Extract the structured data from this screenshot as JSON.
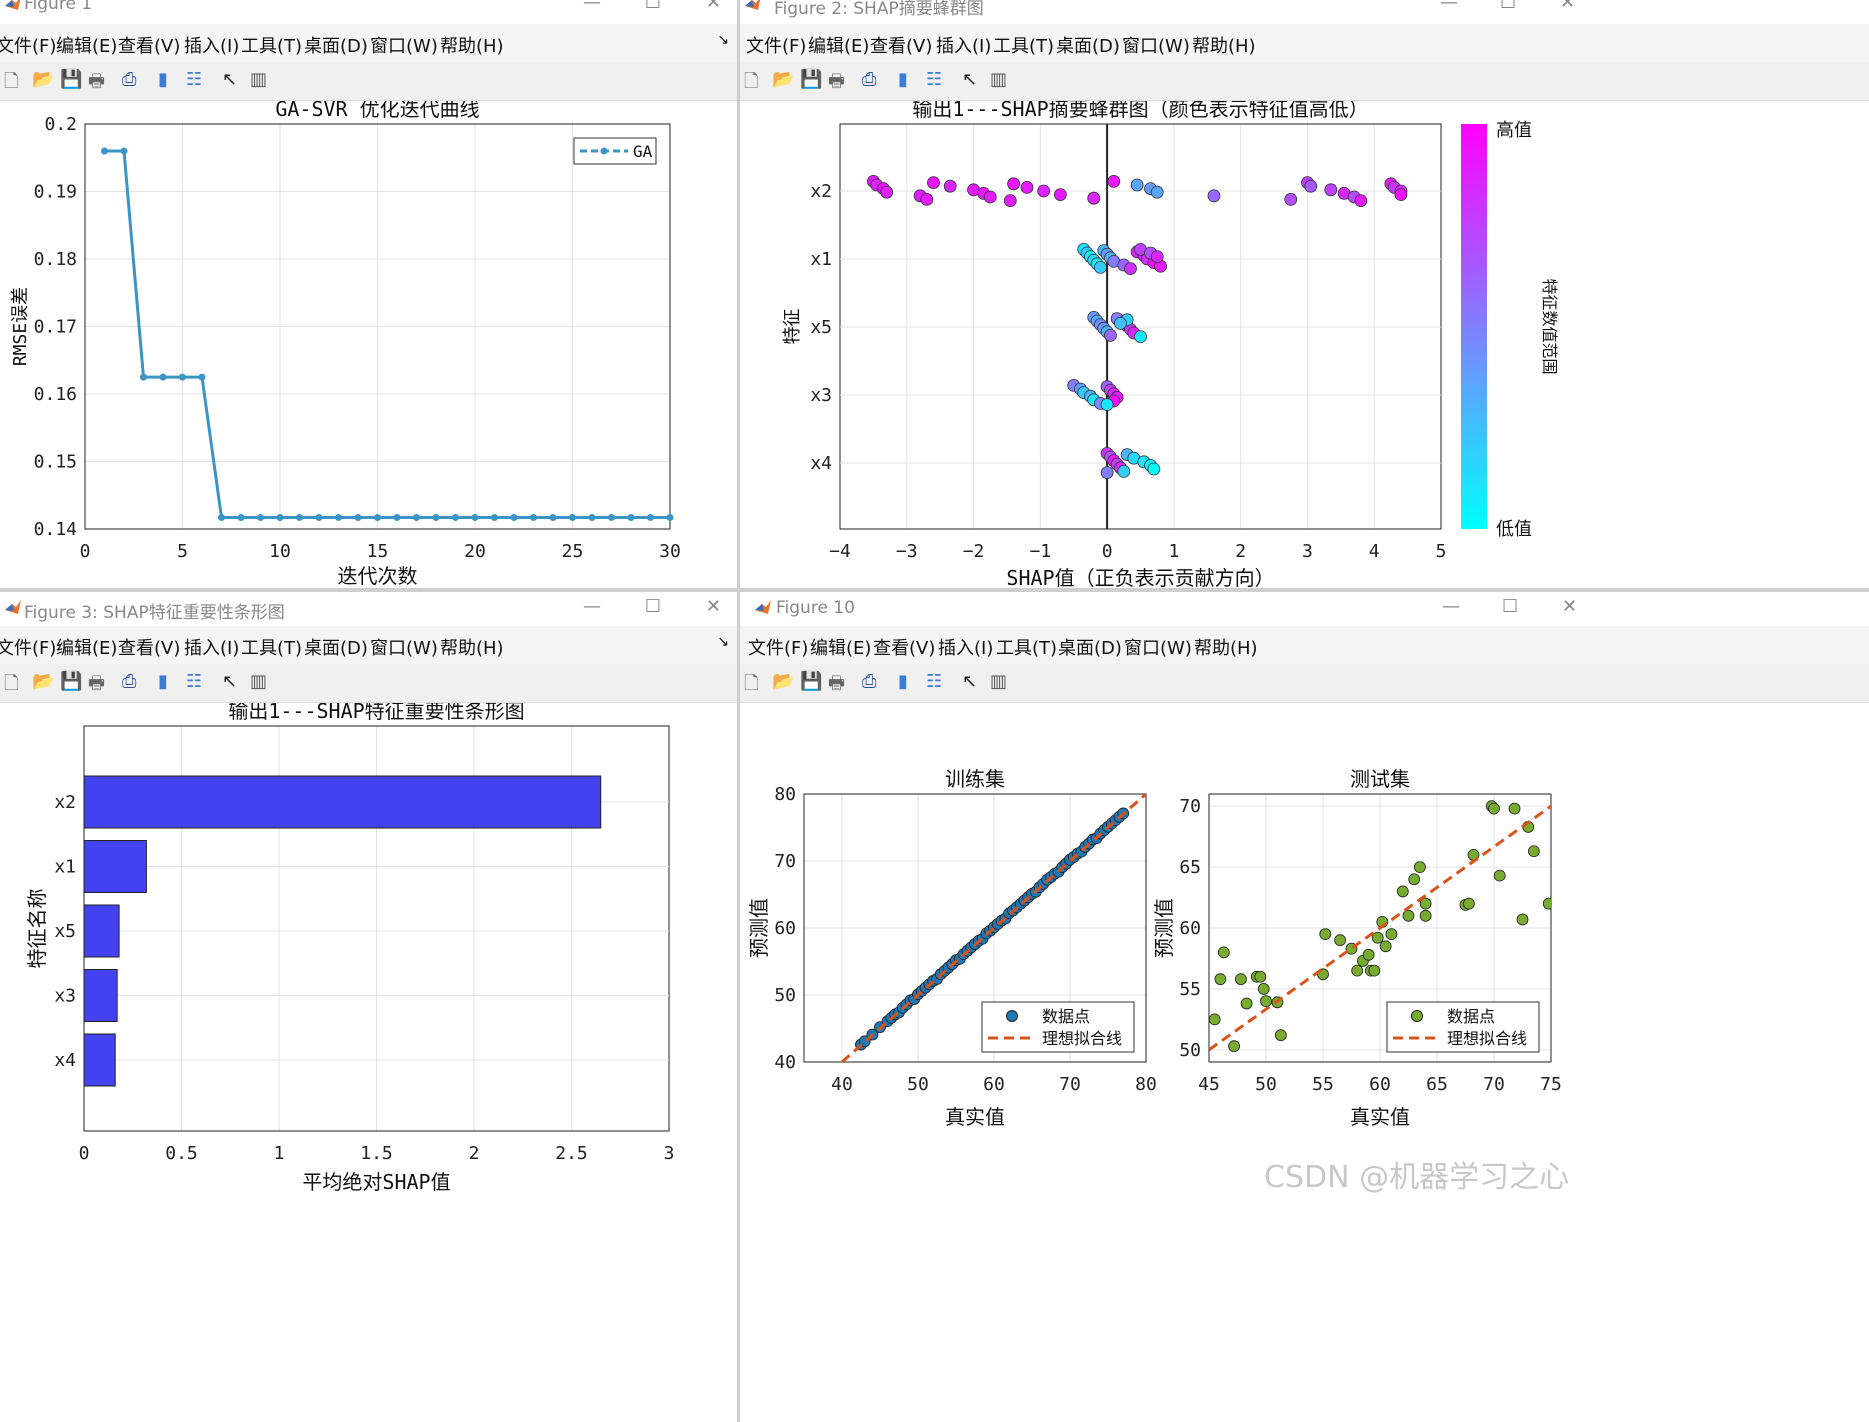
{
  "windows": [
    {
      "title": "Figure 1"
    },
    {
      "title": "Figure 2: SHAP摘要蜂群图"
    },
    {
      "title": "Figure 3: SHAP特征重要性条形图"
    },
    {
      "title": "Figure 10"
    }
  ],
  "menu": [
    "文件(F)",
    "编辑(E)",
    "查看(V)",
    "插入(I)",
    "工具(T)",
    "桌面(D)",
    "窗口(W)",
    "帮助(H)"
  ],
  "toolbar_icons": [
    "new-file-icon",
    "open-folder-icon",
    "save-icon",
    "print-icon",
    "print-preview-icon",
    "colorbar-icon",
    "legend-icon",
    "pointer-icon",
    "property-editor-icon"
  ],
  "watermark": "CSDN @机器学习之心",
  "chart_data": [
    {
      "type": "line",
      "title": "GA-SVR 优化迭代曲线",
      "xlabel": "迭代次数",
      "ylabel": "RMSE误差",
      "xlim": [
        0,
        30
      ],
      "ylim": [
        0.14,
        0.2
      ],
      "xticks": [
        0,
        5,
        10,
        15,
        20,
        25,
        30
      ],
      "yticks": [
        0.14,
        0.15,
        0.16,
        0.17,
        0.18,
        0.19,
        0.2
      ],
      "grid": true,
      "legend": "top-right",
      "color": "#3a95c6",
      "series": [
        {
          "name": "GA",
          "x": [
            1,
            2,
            3,
            4,
            5,
            6,
            7,
            8,
            9,
            10,
            11,
            12,
            13,
            14,
            15,
            16,
            17,
            18,
            19,
            20,
            21,
            22,
            23,
            24,
            25,
            26,
            27,
            28,
            29,
            30
          ],
          "y": [
            0.196,
            0.196,
            0.1625,
            0.1625,
            0.1625,
            0.1625,
            0.1417,
            0.1417,
            0.1417,
            0.1417,
            0.1417,
            0.1417,
            0.1417,
            0.1417,
            0.1417,
            0.1417,
            0.1417,
            0.1417,
            0.1417,
            0.1417,
            0.1417,
            0.1417,
            0.1417,
            0.1417,
            0.1417,
            0.1417,
            0.1417,
            0.1417,
            0.1417,
            0.1417
          ]
        }
      ]
    },
    {
      "type": "scatter",
      "title": "输出1---SHAP摘要蜂群图（颜色表示特征值高低）",
      "xlabel": "SHAP值（正负表示贡献方向）",
      "ylabel": "特征",
      "xlim": [
        -4,
        5
      ],
      "xticks": [
        -4,
        -3,
        -2,
        -1,
        0,
        1,
        2,
        3,
        4,
        5
      ],
      "categories": [
        "x2",
        "x1",
        "x5",
        "x3",
        "x4"
      ],
      "grid": true,
      "colorbar": {
        "high": "高值",
        "low": "低值",
        "label": "特征数值范围",
        "low_color": "#00ffff",
        "high_color": "#ff00ff"
      },
      "series": [
        {
          "feature": "x2",
          "points": [
            [
              -3.5,
              0.9
            ],
            [
              -3.45,
              0.85
            ],
            [
              -3.35,
              0.95
            ],
            [
              -3.3,
              0.88
            ],
            [
              -2.8,
              0.9
            ],
            [
              -2.7,
              0.9
            ],
            [
              -2.6,
              0.93
            ],
            [
              -2.35,
              0.85
            ],
            [
              -2.0,
              0.9
            ],
            [
              -1.85,
              0.92
            ],
            [
              -1.75,
              0.9
            ],
            [
              -1.45,
              0.88
            ],
            [
              -1.4,
              0.92
            ],
            [
              -1.2,
              0.9
            ],
            [
              -0.95,
              0.86
            ],
            [
              -0.7,
              0.9
            ],
            [
              -0.2,
              0.85
            ],
            [
              0.1,
              0.9
            ],
            [
              0.45,
              0.35
            ],
            [
              0.65,
              0.4
            ],
            [
              0.75,
              0.35
            ],
            [
              1.6,
              0.6
            ],
            [
              2.75,
              0.7
            ],
            [
              3.0,
              0.75
            ],
            [
              3.05,
              0.65
            ],
            [
              3.35,
              0.75
            ],
            [
              3.55,
              0.85
            ],
            [
              3.7,
              0.7
            ],
            [
              3.8,
              0.9
            ],
            [
              4.25,
              0.9
            ],
            [
              4.3,
              0.8
            ],
            [
              4.4,
              0.85
            ],
            [
              4.4,
              0.95
            ]
          ]
        },
        {
          "feature": "x1",
          "points": [
            [
              -0.35,
              0.1
            ],
            [
              -0.3,
              0.2
            ],
            [
              -0.25,
              0.05
            ],
            [
              -0.2,
              0.15
            ],
            [
              -0.15,
              0.1
            ],
            [
              -0.1,
              0.2
            ],
            [
              -0.05,
              0.3
            ],
            [
              0.0,
              0.4
            ],
            [
              0.05,
              0.3
            ],
            [
              0.1,
              0.5
            ],
            [
              0.25,
              0.6
            ],
            [
              0.35,
              0.8
            ],
            [
              0.45,
              0.85
            ],
            [
              0.55,
              0.9
            ],
            [
              0.6,
              0.8
            ],
            [
              0.7,
              0.95
            ],
            [
              0.8,
              0.9
            ],
            [
              0.5,
              0.75
            ],
            [
              0.65,
              0.7
            ],
            [
              0.75,
              0.85
            ]
          ]
        },
        {
          "feature": "x5",
          "points": [
            [
              -0.2,
              0.4
            ],
            [
              -0.15,
              0.35
            ],
            [
              -0.1,
              0.45
            ],
            [
              -0.05,
              0.4
            ],
            [
              0.0,
              0.3
            ],
            [
              0.05,
              0.6
            ],
            [
              0.15,
              0.5
            ],
            [
              0.25,
              0.7
            ],
            [
              0.3,
              0.9
            ],
            [
              0.35,
              0.8
            ],
            [
              0.4,
              0.85
            ],
            [
              0.5,
              0.1
            ],
            [
              0.3,
              0.2
            ],
            [
              0.2,
              0.25
            ]
          ]
        },
        {
          "feature": "x3",
          "points": [
            [
              -0.5,
              0.5
            ],
            [
              -0.4,
              0.4
            ],
            [
              -0.35,
              0.2
            ],
            [
              -0.25,
              0.3
            ],
            [
              -0.2,
              0.1
            ],
            [
              -0.1,
              0.45
            ],
            [
              0.0,
              0.6
            ],
            [
              0.05,
              0.75
            ],
            [
              0.1,
              0.85
            ],
            [
              0.15,
              0.9
            ],
            [
              0.1,
              0.95
            ],
            [
              0.0,
              0.1
            ]
          ]
        },
        {
          "feature": "x4",
          "points": [
            [
              0.0,
              0.8
            ],
            [
              0.05,
              0.7
            ],
            [
              0.1,
              0.9
            ],
            [
              0.15,
              0.75
            ],
            [
              0.2,
              0.85
            ],
            [
              0.25,
              0.2
            ],
            [
              0.3,
              0.3
            ],
            [
              0.4,
              0.15
            ],
            [
              0.55,
              0.1
            ],
            [
              0.65,
              0.05
            ],
            [
              0.7,
              0.0
            ],
            [
              0.0,
              0.5
            ]
          ]
        }
      ]
    },
    {
      "type": "bar",
      "orientation": "horizontal",
      "title": "输出1---SHAP特征重要性条形图",
      "xlabel": "平均绝对SHAP值",
      "ylabel": "特征名称",
      "xlim": [
        0,
        3
      ],
      "xticks": [
        0,
        0.5,
        1,
        1.5,
        2,
        2.5,
        3
      ],
      "categories": [
        "x2",
        "x1",
        "x5",
        "x3",
        "x4"
      ],
      "values": [
        2.65,
        0.32,
        0.18,
        0.17,
        0.16
      ],
      "color": "#3838f0",
      "grid": true
    },
    {
      "type": "scatter",
      "title": "训练集",
      "xlabel": "真实值",
      "ylabel": "预测值",
      "xlim": [
        35,
        80
      ],
      "ylim": [
        40,
        80
      ],
      "xticks": [
        40,
        50,
        60,
        70,
        80
      ],
      "yticks": [
        40,
        50,
        60,
        70,
        80
      ],
      "legend": [
        "数据点",
        "理想拟合线"
      ],
      "point_color": "#1f77b4",
      "line_color": "#d95319",
      "grid": true,
      "series": [
        {
          "name": "数据点",
          "x": [
            42.5,
            43,
            44,
            45,
            46,
            46.5,
            47,
            47.5,
            48,
            48.5,
            49,
            49.5,
            50,
            50.5,
            51,
            51.5,
            52,
            52.5,
            53,
            53.5,
            54,
            54.5,
            55,
            55.5,
            56,
            56.5,
            57,
            57.5,
            58,
            58.5,
            59,
            59.5,
            60,
            60.5,
            61,
            61.5,
            62,
            62.5,
            63,
            63.5,
            64,
            64.5,
            65,
            65.5,
            66,
            66.5,
            67,
            67.5,
            68,
            68.5,
            69,
            69.5,
            70,
            70.5,
            71,
            71.5,
            72,
            72.5,
            73,
            73.5,
            74,
            74.5,
            75,
            75.5,
            76,
            76.5,
            77
          ],
          "y": [
            42.6,
            43.1,
            44.1,
            45.2,
            46.1,
            46.6,
            47.1,
            47.4,
            48.1,
            48.6,
            49.2,
            49.4,
            50.1,
            50.6,
            51.1,
            51.6,
            52.1,
            52.4,
            53.1,
            53.6,
            54.1,
            54.6,
            55.2,
            55.4,
            56.1,
            56.6,
            57.1,
            57.6,
            58.1,
            58.4,
            59.2,
            59.6,
            60.1,
            60.6,
            61.1,
            61.4,
            62.2,
            62.6,
            63.1,
            63.6,
            64.1,
            64.6,
            65.1,
            65.4,
            66.1,
            66.6,
            67.2,
            67.6,
            68.1,
            68.4,
            69.1,
            69.6,
            70.2,
            70.6,
            71.1,
            71.4,
            72.1,
            72.6,
            73.2,
            73.4,
            74.1,
            74.6,
            75.1,
            75.6,
            76.1,
            76.6,
            77.1
          ]
        },
        {
          "name": "理想拟合线",
          "x": [
            40,
            80
          ],
          "y": [
            40,
            80
          ]
        }
      ]
    },
    {
      "type": "scatter",
      "title": "测试集",
      "xlabel": "真实值",
      "ylabel": "预测值",
      "xlim": [
        45,
        75
      ],
      "ylim": [
        49,
        71
      ],
      "xticks": [
        45,
        50,
        55,
        60,
        65,
        70,
        75
      ],
      "yticks": [
        50,
        55,
        60,
        65,
        70
      ],
      "legend": [
        "数据点",
        "理想拟合线"
      ],
      "point_color": "#77ac30",
      "line_color": "#d95319",
      "grid": true,
      "series": [
        {
          "name": "数据点",
          "x": [
            45.5,
            46,
            46.3,
            47.2,
            47.8,
            48.3,
            49.2,
            49.5,
            49.8,
            50,
            51,
            51.3,
            55,
            55.2,
            56.5,
            57.5,
            58,
            58.5,
            59,
            59.2,
            59.5,
            59.8,
            60.2,
            60.5,
            61,
            62,
            62.5,
            63,
            63.5,
            64,
            64,
            67.5,
            67.8,
            68.2,
            69.8,
            70,
            70.5,
            71.8,
            72.5,
            73,
            73.5,
            74.8
          ],
          "y": [
            52.5,
            55.8,
            58,
            50.3,
            55.8,
            53.8,
            56,
            56,
            55,
            54,
            53.9,
            51.2,
            56.2,
            59.5,
            59,
            58.3,
            56.5,
            57.3,
            57.8,
            56.5,
            56.5,
            59.2,
            60.5,
            58.5,
            59.5,
            63,
            61,
            64,
            65,
            61,
            62,
            61.9,
            62,
            66,
            70,
            69.8,
            64.3,
            69.8,
            60.7,
            68.3,
            66.3,
            62
          ]
        },
        {
          "name": "理想拟合线",
          "x": [
            45,
            75
          ],
          "y": [
            50,
            70
          ]
        }
      ]
    }
  ]
}
